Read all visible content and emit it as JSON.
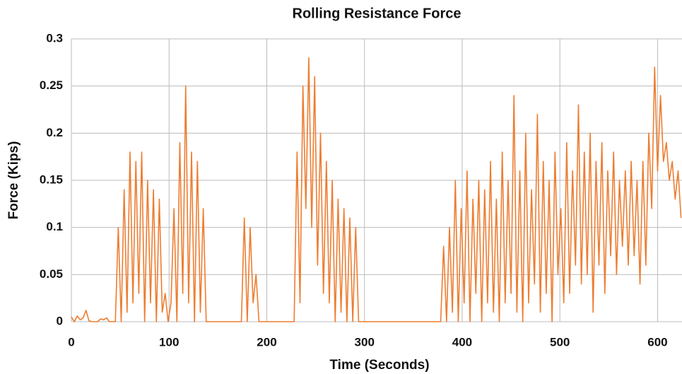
{
  "chart_data": {
    "type": "line",
    "title": "Rolling Resistance Force",
    "xlabel": "Time (Seconds)",
    "ylabel": "Force (Kips)",
    "x": [
      0,
      3,
      6,
      9,
      12,
      15,
      18,
      21,
      24,
      27,
      30,
      33,
      36,
      39,
      42,
      45,
      48,
      51,
      54,
      57,
      60,
      63,
      66,
      69,
      72,
      75,
      78,
      81,
      84,
      87,
      90,
      93,
      96,
      99,
      102,
      105,
      108,
      111,
      114,
      117,
      120,
      123,
      126,
      129,
      132,
      135,
      138,
      141,
      144,
      147,
      150,
      153,
      156,
      159,
      162,
      165,
      168,
      171,
      174,
      177,
      180,
      183,
      186,
      189,
      192,
      195,
      198,
      201,
      204,
      207,
      210,
      213,
      216,
      219,
      222,
      225,
      228,
      231,
      234,
      237,
      240,
      243,
      246,
      249,
      252,
      255,
      258,
      261,
      264,
      267,
      270,
      273,
      276,
      279,
      282,
      285,
      288,
      291,
      294,
      297,
      300,
      303,
      306,
      309,
      312,
      315,
      318,
      321,
      324,
      327,
      330,
      333,
      336,
      339,
      342,
      345,
      348,
      351,
      354,
      357,
      360,
      363,
      366,
      369,
      372,
      375,
      378,
      381,
      384,
      387,
      390,
      393,
      396,
      399,
      402,
      405,
      408,
      411,
      414,
      417,
      420,
      423,
      426,
      429,
      432,
      435,
      438,
      441,
      444,
      447,
      450,
      453,
      456,
      459,
      462,
      465,
      468,
      471,
      474,
      477,
      480,
      483,
      486,
      489,
      492,
      495,
      498,
      501,
      504,
      507,
      510,
      513,
      516,
      519,
      522,
      525,
      528,
      531,
      534,
      537,
      540,
      543,
      546,
      549,
      552,
      555,
      558,
      561,
      564,
      567,
      570,
      573,
      576,
      579,
      582,
      585,
      588,
      591,
      594,
      597,
      600,
      603,
      606,
      609,
      612,
      615,
      618,
      621,
      624
    ],
    "series": [
      {
        "name": "Rolling Resistance Force",
        "color": "#ed7d31",
        "values": [
          0.005,
          0,
          0.006,
          0.002,
          0.004,
          0.012,
          0.001,
          0,
          0,
          0,
          0.003,
          0.002,
          0.004,
          0,
          0,
          0,
          0.1,
          0,
          0.14,
          0.01,
          0.18,
          0.02,
          0.17,
          0.03,
          0.18,
          0,
          0.15,
          0.02,
          0.14,
          0,
          0.13,
          0.01,
          0.03,
          0,
          0.02,
          0.12,
          0,
          0.19,
          0.03,
          0.25,
          0.02,
          0.18,
          0,
          0.17,
          0.01,
          0.12,
          0,
          0,
          0,
          0,
          0,
          0,
          0,
          0,
          0,
          0,
          0,
          0,
          0,
          0.11,
          0,
          0.1,
          0.02,
          0.05,
          0,
          0,
          0,
          0,
          0,
          0,
          0,
          0,
          0,
          0,
          0,
          0,
          0,
          0.18,
          0.02,
          0.25,
          0.12,
          0.28,
          0.1,
          0.26,
          0.06,
          0.2,
          0.03,
          0.17,
          0.02,
          0.15,
          0,
          0.13,
          0.01,
          0.12,
          0,
          0.11,
          0,
          0.1,
          0,
          0,
          0,
          0,
          0,
          0,
          0,
          0,
          0,
          0,
          0,
          0,
          0,
          0,
          0,
          0,
          0,
          0,
          0,
          0,
          0,
          0,
          0,
          0,
          0,
          0,
          0,
          0,
          0,
          0.08,
          0,
          0.1,
          0.01,
          0.15,
          0,
          0.12,
          0.02,
          0.16,
          0,
          0.13,
          0.03,
          0.15,
          0,
          0.14,
          0.02,
          0.17,
          0.01,
          0.13,
          0,
          0.18,
          0.02,
          0.15,
          0.03,
          0.24,
          0.01,
          0.16,
          0,
          0.2,
          0.02,
          0.14,
          0.04,
          0.22,
          0.01,
          0.17,
          0.03,
          0.15,
          0,
          0.18,
          0.05,
          0.12,
          0.02,
          0.19,
          0.03,
          0.16,
          0.06,
          0.23,
          0.04,
          0.18,
          0.05,
          0.2,
          0.01,
          0.17,
          0.06,
          0.19,
          0.03,
          0.16,
          0.07,
          0.18,
          0.05,
          0.15,
          0.08,
          0.16,
          0.06,
          0.17,
          0.07,
          0.15,
          0.04,
          0.17,
          0.06,
          0.2,
          0.12,
          0.27,
          0.16,
          0.24,
          0.17,
          0.19,
          0.15,
          0.17,
          0.13,
          0.16,
          0.11
        ]
      }
    ],
    "xlim": [
      0,
      625
    ],
    "xticks": [
      0,
      100,
      200,
      300,
      400,
      500,
      600
    ],
    "ylim": [
      0,
      0.3
    ],
    "yticks": [
      0,
      0.05,
      0.1,
      0.15,
      0.2,
      0.25,
      0.3
    ],
    "grid": true
  }
}
